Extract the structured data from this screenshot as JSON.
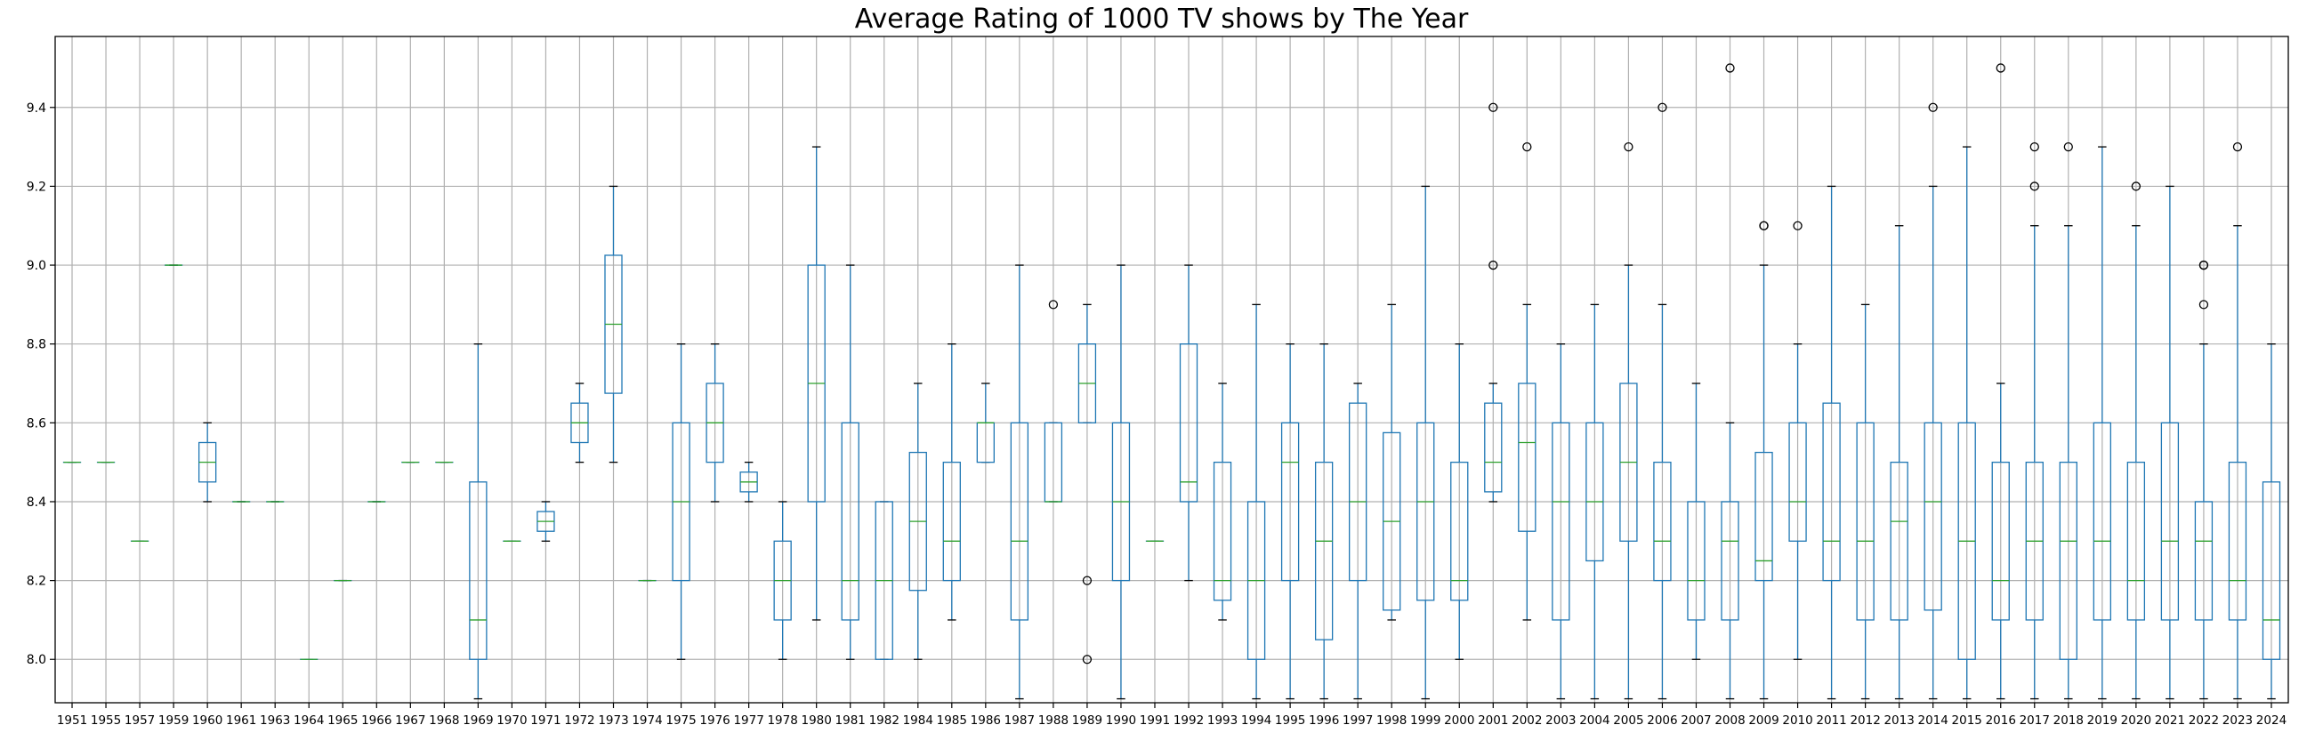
{
  "chart_data": {
    "type": "boxplot",
    "title": "Average Rating of 1000 TV shows by The Year",
    "xlabel": "",
    "ylabel": "",
    "ylim": [
      7.89,
      9.58
    ],
    "yticks": [
      8.0,
      8.2,
      8.4,
      8.6,
      8.8,
      9.0,
      9.2,
      9.4
    ],
    "ytick_labels": [
      "8.0",
      "8.2",
      "8.4",
      "8.6",
      "8.8",
      "9.0",
      "9.2",
      "9.4"
    ],
    "grid": true,
    "box_color": "#1f77b4",
    "median_color": "#2ca02c",
    "categories": [
      "1951",
      "1955",
      "1957",
      "1959",
      "1960",
      "1961",
      "1963",
      "1964",
      "1965",
      "1966",
      "1967",
      "1968",
      "1969",
      "1970",
      "1971",
      "1972",
      "1973",
      "1974",
      "1975",
      "1976",
      "1977",
      "1978",
      "1980",
      "1981",
      "1982",
      "1984",
      "1985",
      "1986",
      "1987",
      "1988",
      "1989",
      "1990",
      "1991",
      "1992",
      "1993",
      "1994",
      "1995",
      "1996",
      "1997",
      "1998",
      "1999",
      "2000",
      "2001",
      "2002",
      "2003",
      "2004",
      "2005",
      "2006",
      "2007",
      "2008",
      "2009",
      "2010",
      "2011",
      "2012",
      "2013",
      "2014",
      "2015",
      "2016",
      "2017",
      "2018",
      "2019",
      "2020",
      "2021",
      "2022",
      "2023",
      "2024"
    ],
    "boxes": [
      {
        "min": 8.5,
        "q1": 8.5,
        "median": 8.5,
        "q3": 8.5,
        "max": 8.5,
        "outliers": []
      },
      {
        "min": 8.5,
        "q1": 8.5,
        "median": 8.5,
        "q3": 8.5,
        "max": 8.5,
        "outliers": []
      },
      {
        "min": 8.3,
        "q1": 8.3,
        "median": 8.3,
        "q3": 8.3,
        "max": 8.3,
        "outliers": []
      },
      {
        "min": 9.0,
        "q1": 9.0,
        "median": 9.0,
        "q3": 9.0,
        "max": 9.0,
        "outliers": []
      },
      {
        "min": 8.4,
        "q1": 8.45,
        "median": 8.5,
        "q3": 8.55,
        "max": 8.6,
        "outliers": []
      },
      {
        "min": 8.4,
        "q1": 8.4,
        "median": 8.4,
        "q3": 8.4,
        "max": 8.4,
        "outliers": []
      },
      {
        "min": 8.4,
        "q1": 8.4,
        "median": 8.4,
        "q3": 8.4,
        "max": 8.4,
        "outliers": []
      },
      {
        "min": 8.0,
        "q1": 8.0,
        "median": 8.0,
        "q3": 8.0,
        "max": 8.0,
        "outliers": []
      },
      {
        "min": 8.2,
        "q1": 8.2,
        "median": 8.2,
        "q3": 8.2,
        "max": 8.2,
        "outliers": []
      },
      {
        "min": 8.4,
        "q1": 8.4,
        "median": 8.4,
        "q3": 8.4,
        "max": 8.4,
        "outliers": []
      },
      {
        "min": 8.5,
        "q1": 8.5,
        "median": 8.5,
        "q3": 8.5,
        "max": 8.5,
        "outliers": []
      },
      {
        "min": 8.5,
        "q1": 8.5,
        "median": 8.5,
        "q3": 8.5,
        "max": 8.5,
        "outliers": []
      },
      {
        "min": 7.9,
        "q1": 8.0,
        "median": 8.1,
        "q3": 8.45,
        "max": 8.8,
        "outliers": []
      },
      {
        "min": 8.3,
        "q1": 8.3,
        "median": 8.3,
        "q3": 8.3,
        "max": 8.3,
        "outliers": []
      },
      {
        "min": 8.3,
        "q1": 8.325,
        "median": 8.35,
        "q3": 8.375,
        "max": 8.4,
        "outliers": []
      },
      {
        "min": 8.5,
        "q1": 8.55,
        "median": 8.6,
        "q3": 8.65,
        "max": 8.7,
        "outliers": []
      },
      {
        "min": 8.5,
        "q1": 8.675,
        "median": 8.85,
        "q3": 9.025,
        "max": 9.2,
        "outliers": []
      },
      {
        "min": 8.2,
        "q1": 8.2,
        "median": 8.2,
        "q3": 8.2,
        "max": 8.2,
        "outliers": []
      },
      {
        "min": 8.0,
        "q1": 8.2,
        "median": 8.4,
        "q3": 8.6,
        "max": 8.8,
        "outliers": []
      },
      {
        "min": 8.4,
        "q1": 8.5,
        "median": 8.6,
        "q3": 8.7,
        "max": 8.8,
        "outliers": []
      },
      {
        "min": 8.4,
        "q1": 8.425,
        "median": 8.45,
        "q3": 8.475,
        "max": 8.5,
        "outliers": []
      },
      {
        "min": 8.0,
        "q1": 8.1,
        "median": 8.2,
        "q3": 8.3,
        "max": 8.4,
        "outliers": []
      },
      {
        "min": 8.1,
        "q1": 8.4,
        "median": 8.7,
        "q3": 9.0,
        "max": 9.3,
        "outliers": []
      },
      {
        "min": 8.0,
        "q1": 8.1,
        "median": 8.2,
        "q3": 8.6,
        "max": 9.0,
        "outliers": []
      },
      {
        "min": 8.0,
        "q1": 8.0,
        "median": 8.2,
        "q3": 8.4,
        "max": 8.4,
        "outliers": []
      },
      {
        "min": 8.0,
        "q1": 8.175,
        "median": 8.35,
        "q3": 8.525,
        "max": 8.7,
        "outliers": []
      },
      {
        "min": 8.1,
        "q1": 8.2,
        "median": 8.3,
        "q3": 8.5,
        "max": 8.8,
        "outliers": []
      },
      {
        "min": 8.5,
        "q1": 8.5,
        "median": 8.6,
        "q3": 8.6,
        "max": 8.7,
        "outliers": []
      },
      {
        "min": 7.9,
        "q1": 8.1,
        "median": 8.3,
        "q3": 8.6,
        "max": 9.0,
        "outliers": []
      },
      {
        "min": 8.4,
        "q1": 8.4,
        "median": 8.4,
        "q3": 8.6,
        "max": 8.6,
        "outliers": [
          8.9
        ]
      },
      {
        "min": 8.6,
        "q1": 8.6,
        "median": 8.7,
        "q3": 8.8,
        "max": 8.9,
        "outliers": [
          8.2,
          8.0
        ]
      },
      {
        "min": 7.9,
        "q1": 8.2,
        "median": 8.4,
        "q3": 8.6,
        "max": 9.0,
        "outliers": []
      },
      {
        "min": 8.3,
        "q1": 8.3,
        "median": 8.3,
        "q3": 8.3,
        "max": 8.3,
        "outliers": []
      },
      {
        "min": 8.2,
        "q1": 8.4,
        "median": 8.45,
        "q3": 8.8,
        "max": 9.0,
        "outliers": []
      },
      {
        "min": 8.1,
        "q1": 8.15,
        "median": 8.2,
        "q3": 8.5,
        "max": 8.7,
        "outliers": []
      },
      {
        "min": 7.9,
        "q1": 8.0,
        "median": 8.2,
        "q3": 8.4,
        "max": 8.9,
        "outliers": []
      },
      {
        "min": 7.9,
        "q1": 8.2,
        "median": 8.5,
        "q3": 8.6,
        "max": 8.8,
        "outliers": []
      },
      {
        "min": 7.9,
        "q1": 8.05,
        "median": 8.3,
        "q3": 8.5,
        "max": 8.8,
        "outliers": []
      },
      {
        "min": 7.9,
        "q1": 8.2,
        "median": 8.4,
        "q3": 8.65,
        "max": 8.7,
        "outliers": []
      },
      {
        "min": 8.1,
        "q1": 8.125,
        "median": 8.35,
        "q3": 8.575,
        "max": 8.9,
        "outliers": []
      },
      {
        "min": 7.9,
        "q1": 8.15,
        "median": 8.4,
        "q3": 8.6,
        "max": 9.2,
        "outliers": []
      },
      {
        "min": 8.0,
        "q1": 8.15,
        "median": 8.2,
        "q3": 8.5,
        "max": 8.8,
        "outliers": []
      },
      {
        "min": 8.4,
        "q1": 8.425,
        "median": 8.5,
        "q3": 8.65,
        "max": 8.7,
        "outliers": [
          9.0,
          9.4
        ]
      },
      {
        "min": 8.1,
        "q1": 8.325,
        "median": 8.55,
        "q3": 8.7,
        "max": 8.9,
        "outliers": [
          9.3
        ]
      },
      {
        "min": 7.9,
        "q1": 8.1,
        "median": 8.4,
        "q3": 8.6,
        "max": 8.8,
        "outliers": []
      },
      {
        "min": 7.9,
        "q1": 8.25,
        "median": 8.4,
        "q3": 8.6,
        "max": 8.9,
        "outliers": []
      },
      {
        "min": 7.9,
        "q1": 8.3,
        "median": 8.5,
        "q3": 8.7,
        "max": 9.0,
        "outliers": [
          9.3
        ]
      },
      {
        "min": 7.9,
        "q1": 8.2,
        "median": 8.3,
        "q3": 8.5,
        "max": 8.9,
        "outliers": [
          9.4
        ]
      },
      {
        "min": 8.0,
        "q1": 8.1,
        "median": 8.2,
        "q3": 8.4,
        "max": 8.7,
        "outliers": []
      },
      {
        "min": 7.9,
        "q1": 8.1,
        "median": 8.3,
        "q3": 8.4,
        "max": 8.6,
        "outliers": [
          9.5
        ]
      },
      {
        "min": 7.9,
        "q1": 8.2,
        "median": 8.25,
        "q3": 8.525,
        "max": 9.0,
        "outliers": [
          9.1,
          9.1
        ]
      },
      {
        "min": 8.0,
        "q1": 8.3,
        "median": 8.4,
        "q3": 8.6,
        "max": 8.8,
        "outliers": [
          9.1
        ]
      },
      {
        "min": 7.9,
        "q1": 8.2,
        "median": 8.3,
        "q3": 8.65,
        "max": 9.2,
        "outliers": []
      },
      {
        "min": 7.9,
        "q1": 8.1,
        "median": 8.3,
        "q3": 8.6,
        "max": 8.9,
        "outliers": []
      },
      {
        "min": 7.9,
        "q1": 8.1,
        "median": 8.35,
        "q3": 8.5,
        "max": 9.1,
        "outliers": []
      },
      {
        "min": 7.9,
        "q1": 8.125,
        "median": 8.4,
        "q3": 8.6,
        "max": 9.2,
        "outliers": [
          9.4
        ]
      },
      {
        "min": 7.9,
        "q1": 8.0,
        "median": 8.3,
        "q3": 8.6,
        "max": 9.3,
        "outliers": []
      },
      {
        "min": 7.9,
        "q1": 8.1,
        "median": 8.2,
        "q3": 8.5,
        "max": 8.7,
        "outliers": [
          9.5
        ]
      },
      {
        "min": 7.9,
        "q1": 8.1,
        "median": 8.3,
        "q3": 8.5,
        "max": 9.1,
        "outliers": [
          9.2,
          9.3
        ]
      },
      {
        "min": 7.9,
        "q1": 8.0,
        "median": 8.3,
        "q3": 8.5,
        "max": 9.1,
        "outliers": [
          9.3
        ]
      },
      {
        "min": 7.9,
        "q1": 8.1,
        "median": 8.3,
        "q3": 8.6,
        "max": 9.3,
        "outliers": []
      },
      {
        "min": 7.9,
        "q1": 8.1,
        "median": 8.2,
        "q3": 8.5,
        "max": 9.1,
        "outliers": [
          9.2
        ]
      },
      {
        "min": 7.9,
        "q1": 8.1,
        "median": 8.3,
        "q3": 8.6,
        "max": 9.2,
        "outliers": []
      },
      {
        "min": 7.9,
        "q1": 8.1,
        "median": 8.3,
        "q3": 8.4,
        "max": 8.8,
        "outliers": [
          8.9,
          9.0,
          9.0
        ]
      },
      {
        "min": 7.9,
        "q1": 8.1,
        "median": 8.2,
        "q3": 8.5,
        "max": 9.1,
        "outliers": [
          9.3
        ]
      },
      {
        "min": 7.9,
        "q1": 8.0,
        "median": 8.1,
        "q3": 8.45,
        "max": 8.8,
        "outliers": []
      }
    ]
  }
}
